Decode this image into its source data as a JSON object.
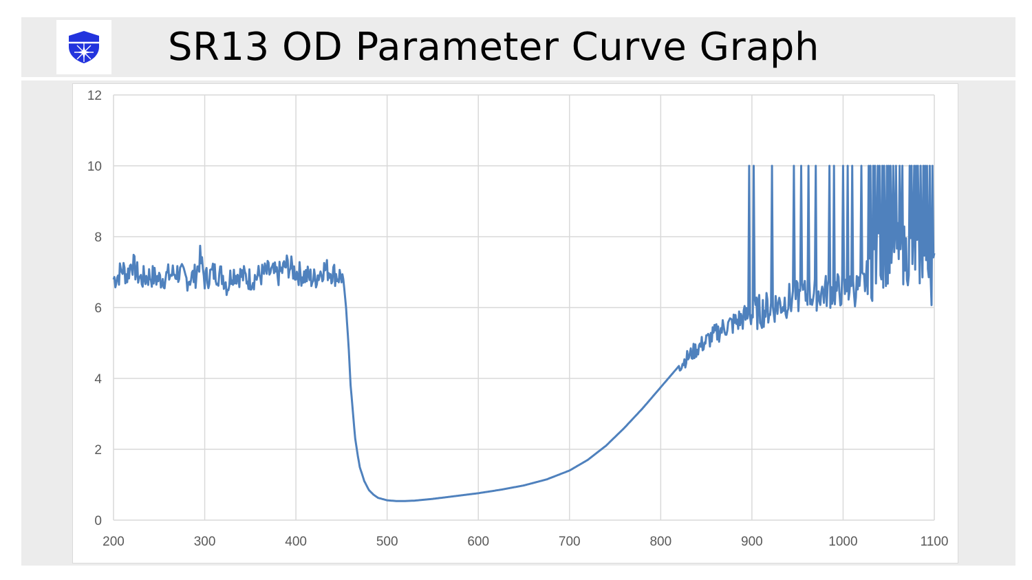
{
  "header": {
    "title": "SR13 OD Parameter Curve Graph",
    "logo_icon": "shield-sparkle-icon",
    "logo_color": "#2233dd"
  },
  "chart_data": {
    "type": "line",
    "title": "SR13 OD Parameter Curve Graph",
    "xlabel": "",
    "ylabel": "",
    "xlim": [
      200,
      1100
    ],
    "ylim": [
      0,
      12
    ],
    "x_ticks": [
      200,
      300,
      400,
      500,
      600,
      700,
      800,
      900,
      1000,
      1100
    ],
    "y_ticks": [
      0,
      2,
      4,
      6,
      8,
      10,
      12
    ],
    "grid": true,
    "legend": "none",
    "line_color": "#4f81bd",
    "series": [
      {
        "name": "",
        "x": [
          200,
          205,
          210,
          215,
          220,
          225,
          230,
          240,
          250,
          260,
          270,
          280,
          290,
          295,
          300,
          310,
          320,
          325,
          330,
          340,
          350,
          360,
          370,
          380,
          390,
          400,
          410,
          420,
          430,
          440,
          445,
          450,
          452,
          455,
          458,
          460,
          463,
          465,
          468,
          470,
          475,
          480,
          485,
          490,
          500,
          510,
          520,
          530,
          550,
          575,
          600,
          625,
          650,
          675,
          700,
          720,
          740,
          760,
          780,
          800,
          810,
          820,
          830,
          840,
          850,
          860,
          870,
          880,
          890,
          900,
          920,
          940,
          960,
          980,
          1000,
          1010,
          1020,
          1030,
          1040,
          1050,
          1060,
          1070,
          1080,
          1090,
          1100
        ],
        "y": [
          6.8,
          6.9,
          7.1,
          6.9,
          7.3,
          7.0,
          6.8,
          6.9,
          6.8,
          6.9,
          7.0,
          6.8,
          6.9,
          7.4,
          6.8,
          7.0,
          6.9,
          6.6,
          7.0,
          6.9,
          6.8,
          6.9,
          7.0,
          6.9,
          7.2,
          7.0,
          6.9,
          6.8,
          7.1,
          7.0,
          6.9,
          6.9,
          6.8,
          6.0,
          4.8,
          3.8,
          2.9,
          2.3,
          1.8,
          1.5,
          1.1,
          0.85,
          0.72,
          0.63,
          0.56,
          0.54,
          0.54,
          0.55,
          0.6,
          0.68,
          0.76,
          0.86,
          0.98,
          1.15,
          1.4,
          1.7,
          2.1,
          2.6,
          3.15,
          3.75,
          4.05,
          4.35,
          4.6,
          4.85,
          5.05,
          5.25,
          5.45,
          5.55,
          5.7,
          5.8,
          6.0,
          6.2,
          6.35,
          6.45,
          6.5,
          6.5,
          6.55,
          7.0,
          7.4,
          7.5,
          7.5,
          7.5,
          7.5,
          7.3,
          6.8
        ],
        "spikes_to": 10,
        "spike_x": [
          897,
          902,
          922,
          946,
          954,
          962,
          970,
          985,
          990,
          1000,
          1005,
          1010,
          1020,
          1028,
          1030,
          1033,
          1035,
          1038,
          1040,
          1043,
          1045,
          1048,
          1050,
          1052,
          1055,
          1058,
          1062,
          1065,
          1073,
          1075,
          1078,
          1080,
          1082,
          1085,
          1088,
          1090,
          1092,
          1095,
          1098
        ]
      }
    ]
  }
}
